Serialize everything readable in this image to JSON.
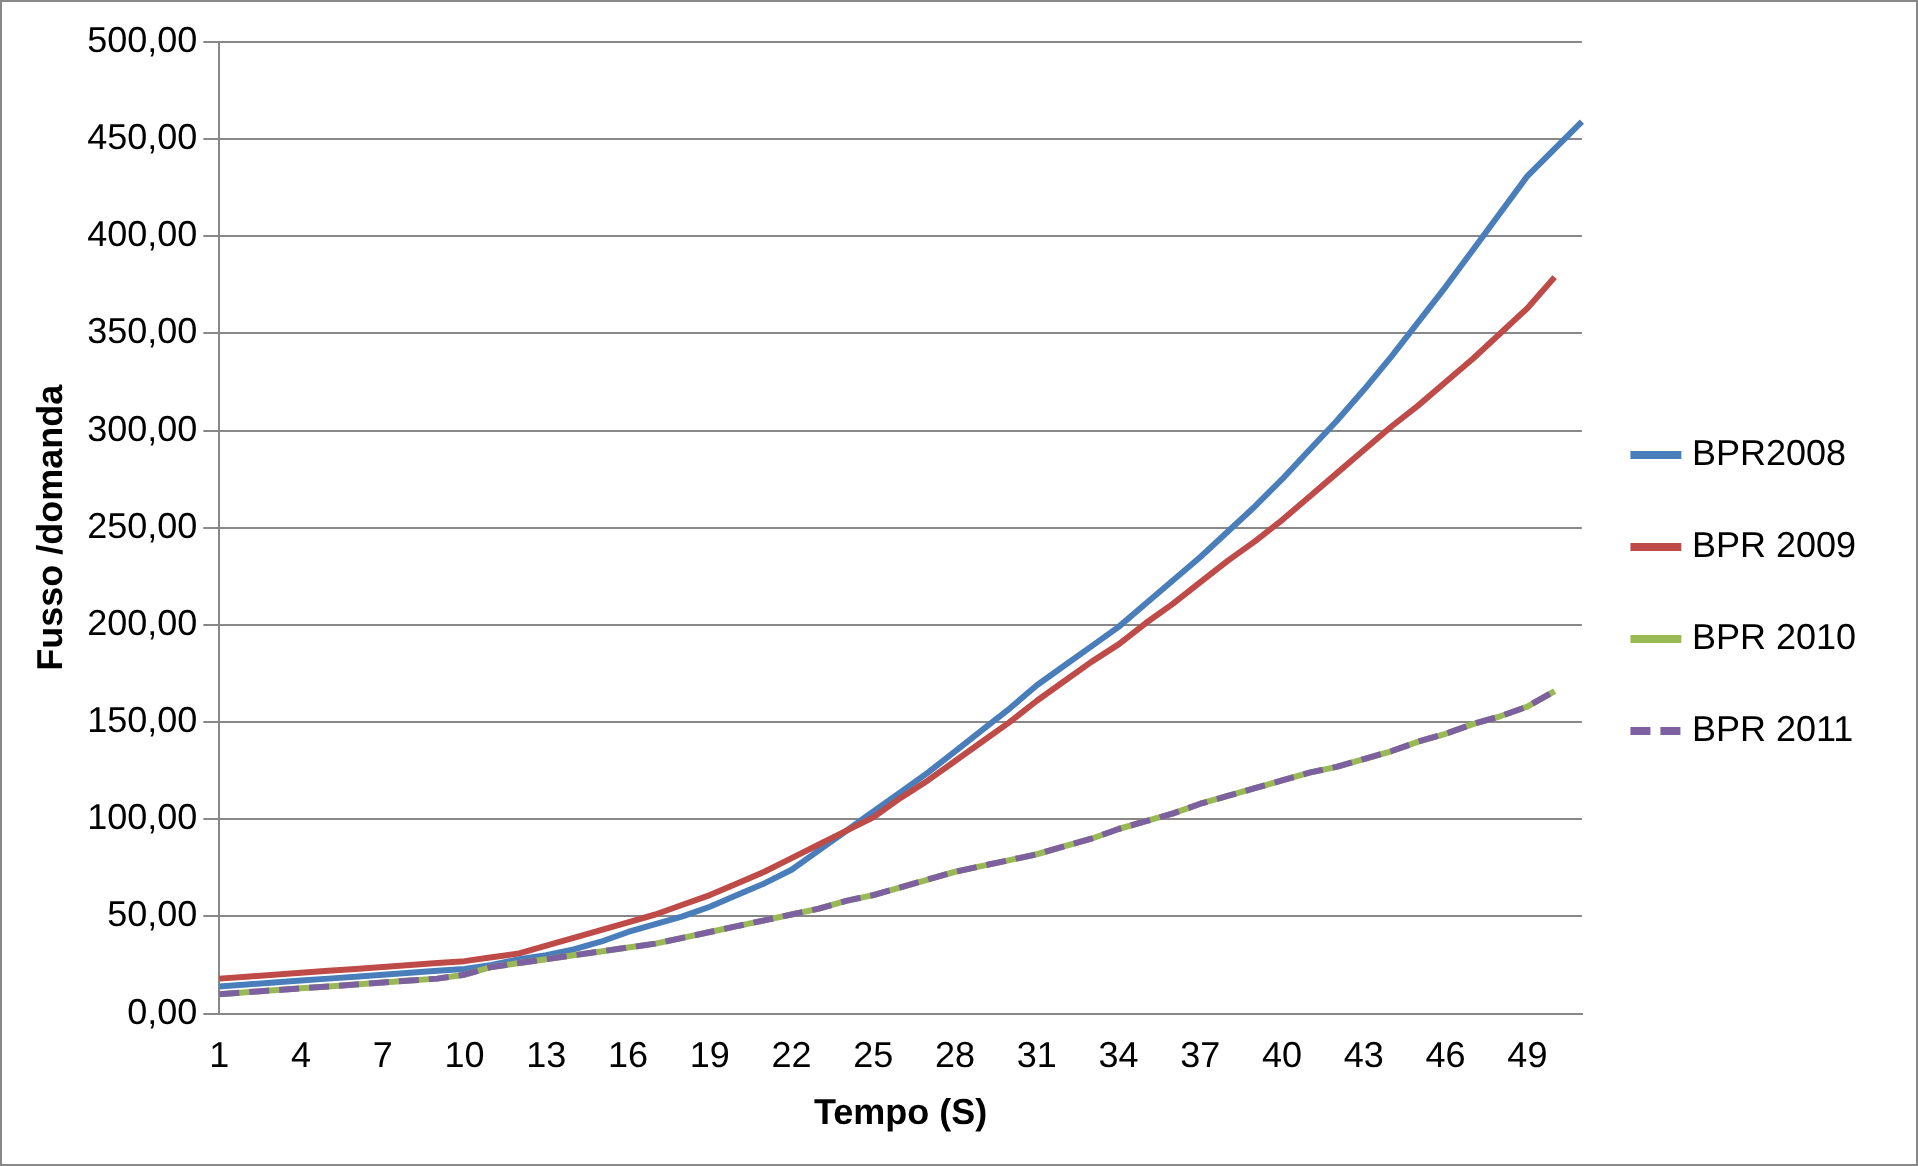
{
  "chart_data": {
    "type": "line",
    "xlabel": "Tempo (S)",
    "ylabel": "Fusso /domanda",
    "categories": [
      "1",
      null,
      null,
      "4",
      null,
      null,
      "7",
      null,
      null,
      "10",
      null,
      null,
      "13",
      null,
      null,
      "16",
      null,
      null,
      "19",
      null,
      null,
      "22",
      null,
      null,
      "25",
      null,
      null,
      "28",
      null,
      null,
      "31",
      null,
      null,
      "34",
      null,
      null,
      "37",
      null,
      null,
      "40",
      null,
      null,
      "43",
      null,
      null,
      "46",
      null,
      null,
      "49",
      null,
      null
    ],
    "series": [
      {
        "name": "BPR2008",
        "color": "#4a7ebb",
        "values": [
          14,
          15,
          16,
          17,
          18,
          19,
          20,
          21,
          22,
          23,
          25,
          28,
          30,
          33,
          37,
          42,
          46,
          50,
          55,
          61,
          67,
          74,
          84,
          94,
          104,
          114,
          124,
          135,
          146,
          157,
          169,
          179,
          189,
          199,
          211,
          223,
          235,
          248,
          261,
          275,
          290,
          305,
          321,
          338,
          356,
          374,
          393,
          412,
          431,
          445,
          459
        ]
      },
      {
        "name": "BPR 2009",
        "color": "#be4b48",
        "values": [
          18,
          19,
          20,
          21,
          22,
          23,
          24,
          25,
          26,
          27,
          29,
          31,
          35,
          39,
          43,
          47,
          51,
          56,
          61,
          67,
          73,
          80,
          87,
          94,
          101,
          111,
          120,
          130,
          140,
          150,
          161,
          171,
          181,
          190,
          201,
          211,
          222,
          233,
          243,
          254,
          266,
          278,
          290,
          302,
          313,
          325,
          337,
          350,
          363,
          379,
          null
        ]
      },
      {
        "name": "BPR 2010",
        "color": "#98b954",
        "values": [
          10,
          11,
          12,
          13,
          14,
          15,
          16,
          17,
          18,
          20,
          24,
          26,
          28,
          30,
          32,
          34,
          36,
          39,
          42,
          45,
          48,
          51,
          54,
          58,
          61,
          65,
          69,
          73,
          76,
          79,
          82,
          86,
          90,
          95,
          99,
          103,
          108,
          112,
          116,
          120,
          124,
          127,
          131,
          135,
          140,
          144,
          149,
          153,
          158,
          166,
          null
        ]
      },
      {
        "name": "BPR 2011",
        "color": "#7d60a0",
        "line_style": "dashed",
        "values": [
          10,
          11,
          12,
          13,
          14,
          15,
          16,
          17,
          18,
          20,
          24,
          26,
          28,
          30,
          32,
          34,
          36,
          39,
          42,
          45,
          48,
          51,
          54,
          58,
          61,
          65,
          69,
          73,
          76,
          79,
          82,
          86,
          90,
          95,
          99,
          103,
          108,
          112,
          116,
          120,
          124,
          127,
          131,
          135,
          140,
          144,
          149,
          153,
          158,
          166,
          null
        ]
      }
    ],
    "ylim": [
      0,
      500
    ],
    "yticks": [
      {
        "value": 0,
        "label": "0,00"
      },
      {
        "value": 50,
        "label": "50,00"
      },
      {
        "value": 100,
        "label": "100,00"
      },
      {
        "value": 150,
        "label": "150,00"
      },
      {
        "value": 200,
        "label": "200,00"
      },
      {
        "value": 250,
        "label": "250,00"
      },
      {
        "value": 300,
        "label": "300,00"
      },
      {
        "value": 350,
        "label": "350,00"
      },
      {
        "value": 400,
        "label": "400,00"
      },
      {
        "value": 450,
        "label": "450,00"
      },
      {
        "value": 500,
        "label": "500,00"
      }
    ],
    "grid": "y",
    "legend": "right",
    "marker": "none",
    "line_style": "solid"
  }
}
